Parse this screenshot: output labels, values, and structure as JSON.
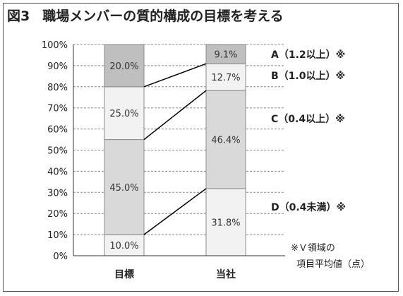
{
  "figure_label": "図3",
  "title": "職場メンバーの質的構成の目標を考える",
  "chart_data": {
    "type": "bar",
    "stacked": true,
    "categories": [
      "目標",
      "当社"
    ],
    "ylim": [
      0,
      100
    ],
    "yticks": [
      "0%",
      "10%",
      "20%",
      "30%",
      "40%",
      "50%",
      "60%",
      "70%",
      "80%",
      "90%",
      "100%"
    ],
    "grid": true,
    "segments": [
      {
        "name": "D（0.4未満）※",
        "values": [
          10.0,
          31.8
        ],
        "labels": [
          "10.0%",
          "31.8%"
        ],
        "color": "#f2f2f2"
      },
      {
        "name": "C（0.4以上）※",
        "values": [
          45.0,
          46.4
        ],
        "labels": [
          "45.0%",
          "46.4%"
        ],
        "color": "#d9d9d9"
      },
      {
        "name": "B（1.0以上）※",
        "values": [
          25.0,
          12.7
        ],
        "labels": [
          "25.0%",
          "12.7%"
        ],
        "color": "#f2f2f2"
      },
      {
        "name": "A（1.2以上）※",
        "values": [
          20.0,
          9.1
        ],
        "labels": [
          "20.0%",
          "9.1%"
        ],
        "color": "#bfbfbf"
      }
    ]
  },
  "footnote": [
    "※Ｖ領域の",
    "項目平均値（点）"
  ]
}
